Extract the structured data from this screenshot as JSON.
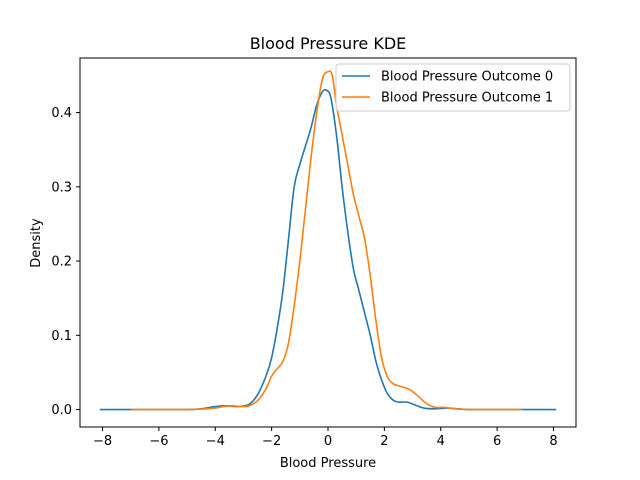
{
  "chart_data": {
    "type": "line",
    "title": "Blood Pressure KDE",
    "xlabel": "Blood Pressure",
    "ylabel": "Density",
    "xlim": [
      -8.8,
      8.8
    ],
    "ylim": [
      -0.0235,
      0.4735
    ],
    "xticks": [
      -8,
      -6,
      -4,
      -2,
      0,
      2,
      4,
      6,
      8
    ],
    "yticks": [
      0.0,
      0.1,
      0.2,
      0.3,
      0.4
    ],
    "xtick_labels": [
      "−8",
      "−6",
      "−4",
      "−2",
      "0",
      "2",
      "4",
      "6",
      "8"
    ],
    "ytick_labels": [
      "0.0",
      "0.1",
      "0.2",
      "0.3",
      "0.4"
    ],
    "grid": false,
    "legend_position": "top-right",
    "series": [
      {
        "name": "Blood Pressure Outcome 0",
        "color": "#1f77b4",
        "points": [
          [
            -8.1,
            0.0
          ],
          [
            -6.0,
            0.0
          ],
          [
            -5.0,
            0.0
          ],
          [
            -4.5,
            0.001
          ],
          [
            -4.0,
            0.004
          ],
          [
            -3.6,
            0.005
          ],
          [
            -3.2,
            0.004
          ],
          [
            -2.8,
            0.007
          ],
          [
            -2.5,
            0.02
          ],
          [
            -2.2,
            0.045
          ],
          [
            -2.0,
            0.07
          ],
          [
            -1.8,
            0.11
          ],
          [
            -1.6,
            0.16
          ],
          [
            -1.4,
            0.23
          ],
          [
            -1.2,
            0.3
          ],
          [
            -1.0,
            0.33
          ],
          [
            -0.8,
            0.355
          ],
          [
            -0.6,
            0.38
          ],
          [
            -0.4,
            0.41
          ],
          [
            -0.2,
            0.428
          ],
          [
            -0.05,
            0.43
          ],
          [
            0.1,
            0.42
          ],
          [
            0.3,
            0.37
          ],
          [
            0.5,
            0.3
          ],
          [
            0.7,
            0.24
          ],
          [
            0.9,
            0.19
          ],
          [
            1.1,
            0.16
          ],
          [
            1.3,
            0.13
          ],
          [
            1.5,
            0.1
          ],
          [
            1.7,
            0.065
          ],
          [
            1.9,
            0.04
          ],
          [
            2.1,
            0.022
          ],
          [
            2.3,
            0.013
          ],
          [
            2.5,
            0.01
          ],
          [
            2.8,
            0.01
          ],
          [
            3.1,
            0.006
          ],
          [
            3.4,
            0.002
          ],
          [
            3.8,
            0.001
          ],
          [
            4.2,
            0.002
          ],
          [
            4.6,
            0.001
          ],
          [
            5.0,
            0.0
          ],
          [
            6.0,
            0.0
          ],
          [
            7.0,
            0.0
          ],
          [
            8.1,
            0.0
          ]
        ]
      },
      {
        "name": "Blood Pressure Outcome 1",
        "color": "#ff7f0e",
        "points": [
          [
            -7.0,
            0.0
          ],
          [
            -6.0,
            0.0
          ],
          [
            -5.0,
            0.0
          ],
          [
            -4.3,
            0.001
          ],
          [
            -4.0,
            0.002
          ],
          [
            -3.7,
            0.004
          ],
          [
            -3.4,
            0.005
          ],
          [
            -3.1,
            0.004
          ],
          [
            -2.8,
            0.005
          ],
          [
            -2.5,
            0.012
          ],
          [
            -2.2,
            0.028
          ],
          [
            -2.0,
            0.045
          ],
          [
            -1.8,
            0.055
          ],
          [
            -1.6,
            0.065
          ],
          [
            -1.4,
            0.09
          ],
          [
            -1.2,
            0.14
          ],
          [
            -1.0,
            0.2
          ],
          [
            -0.8,
            0.27
          ],
          [
            -0.6,
            0.34
          ],
          [
            -0.4,
            0.4
          ],
          [
            -0.2,
            0.445
          ],
          [
            0.0,
            0.455
          ],
          [
            0.15,
            0.45
          ],
          [
            0.3,
            0.41
          ],
          [
            0.5,
            0.37
          ],
          [
            0.7,
            0.33
          ],
          [
            0.9,
            0.29
          ],
          [
            1.1,
            0.26
          ],
          [
            1.3,
            0.23
          ],
          [
            1.5,
            0.18
          ],
          [
            1.7,
            0.12
          ],
          [
            1.9,
            0.07
          ],
          [
            2.1,
            0.045
          ],
          [
            2.3,
            0.035
          ],
          [
            2.6,
            0.031
          ],
          [
            2.9,
            0.027
          ],
          [
            3.2,
            0.018
          ],
          [
            3.5,
            0.008
          ],
          [
            3.8,
            0.003
          ],
          [
            4.1,
            0.003
          ],
          [
            4.5,
            0.001
          ],
          [
            5.0,
            0.0
          ],
          [
            6.0,
            0.0
          ],
          [
            6.9,
            0.0
          ]
        ]
      }
    ]
  }
}
